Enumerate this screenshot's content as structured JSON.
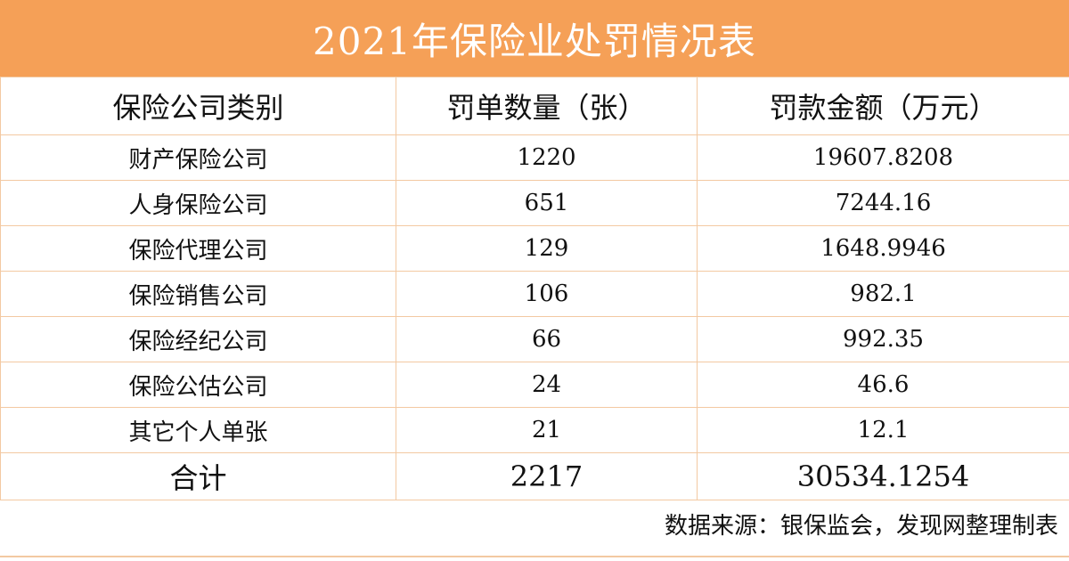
{
  "chart_data": {
    "type": "table",
    "title": "2021年保险业处罚情况表",
    "columns": [
      "保险公司类别",
      "罚单数量（张）",
      "罚款金额（万元）"
    ],
    "rows": [
      [
        "财产保险公司",
        "1220",
        "19607.8208"
      ],
      [
        "人身保险公司",
        "651",
        "7244.16"
      ],
      [
        "保险代理公司",
        "129",
        "1648.9946"
      ],
      [
        "保险销售公司",
        "106",
        "982.1"
      ],
      [
        "保险经纪公司",
        "66",
        "992.35"
      ],
      [
        "保险公估公司",
        "24",
        "46.6"
      ],
      [
        "其它个人单张",
        "21",
        "12.1"
      ]
    ],
    "total": [
      "合计",
      "2217",
      "30534.1254"
    ],
    "source": "数据来源：银保监会，发现网整理制表"
  },
  "colors": {
    "title_background": "#f5a057",
    "title_text": "#ffffff",
    "grid_line": "#f3c9a2"
  }
}
